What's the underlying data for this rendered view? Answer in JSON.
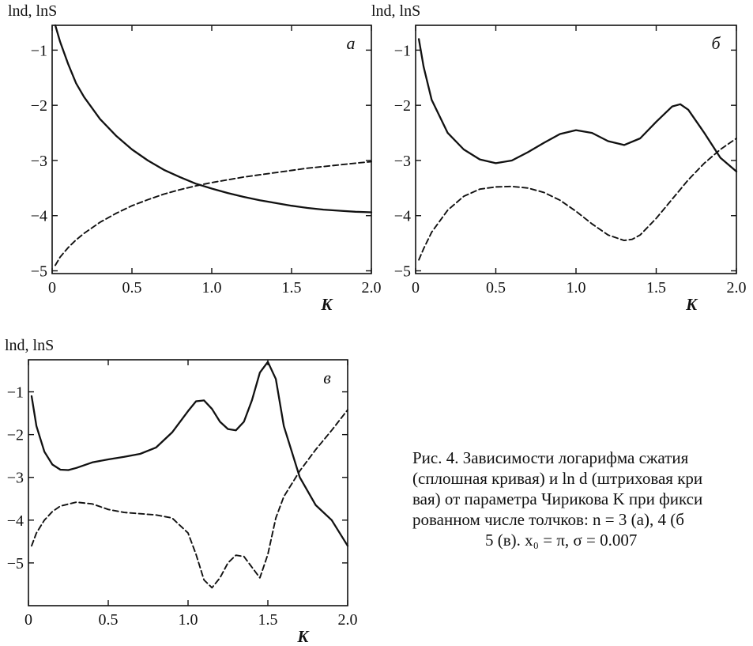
{
  "figure": {
    "caption_lines": [
      "Рис. 4.   Зависимости логарифма сжатия",
      "(сплошная кривая) и ln d (штриховая кри",
      "вая) от параметра Чирикова K при фикси",
      "рованном числе толчков:  n = 3 (а), 4 (б",
      "5 (в).  x₀ = π,  σ = 0.007"
    ]
  },
  "chart_data": [
    {
      "type": "line",
      "panel_label": "а",
      "ylabel": "lnd, lnS",
      "xlabel": "K",
      "xlim": [
        0,
        2.0
      ],
      "ylim": [
        -5.05,
        -0.55
      ],
      "xticks": [
        "0",
        "0.5",
        "1.0",
        "1.5",
        "2.0"
      ],
      "yticks": [
        "−1",
        "−2",
        "−3",
        "−4",
        "−5"
      ],
      "grid": false,
      "series": [
        {
          "style": "solid",
          "x": [
            0.02,
            0.05,
            0.1,
            0.15,
            0.2,
            0.3,
            0.4,
            0.5,
            0.6,
            0.7,
            0.8,
            0.9,
            1.0,
            1.1,
            1.2,
            1.3,
            1.4,
            1.5,
            1.6,
            1.7,
            1.8,
            1.9,
            2.0
          ],
          "y": [
            -0.55,
            -0.85,
            -1.25,
            -1.6,
            -1.85,
            -2.25,
            -2.55,
            -2.8,
            -3.0,
            -3.17,
            -3.3,
            -3.42,
            -3.51,
            -3.59,
            -3.66,
            -3.72,
            -3.77,
            -3.82,
            -3.86,
            -3.89,
            -3.91,
            -3.93,
            -3.94
          ]
        },
        {
          "style": "dashed",
          "x": [
            0.02,
            0.05,
            0.1,
            0.15,
            0.2,
            0.3,
            0.4,
            0.5,
            0.6,
            0.7,
            0.8,
            0.9,
            1.0,
            1.1,
            1.2,
            1.3,
            1.4,
            1.5,
            1.6,
            1.7,
            1.8,
            1.9,
            2.0
          ],
          "y": [
            -4.9,
            -4.75,
            -4.58,
            -4.44,
            -4.32,
            -4.12,
            -3.96,
            -3.82,
            -3.71,
            -3.61,
            -3.53,
            -3.46,
            -3.4,
            -3.35,
            -3.3,
            -3.26,
            -3.22,
            -3.18,
            -3.14,
            -3.11,
            -3.08,
            -3.05,
            -3.02
          ]
        }
      ]
    },
    {
      "type": "line",
      "panel_label": "б",
      "ylabel": "lnd, lnS",
      "xlabel": "K",
      "xlim": [
        0,
        2.0
      ],
      "ylim": [
        -5.05,
        -0.55
      ],
      "xticks": [
        "0",
        "0.5",
        "1.0",
        "1.5",
        "2.0"
      ],
      "yticks": [
        "−1",
        "−2",
        "−3",
        "−4",
        "−5"
      ],
      "grid": false,
      "series": [
        {
          "style": "solid",
          "x": [
            0.02,
            0.05,
            0.1,
            0.2,
            0.3,
            0.4,
            0.5,
            0.6,
            0.7,
            0.8,
            0.9,
            1.0,
            1.1,
            1.2,
            1.3,
            1.4,
            1.5,
            1.6,
            1.65,
            1.7,
            1.8,
            1.9,
            2.0
          ],
          "y": [
            -0.8,
            -1.3,
            -1.9,
            -2.5,
            -2.8,
            -2.98,
            -3.05,
            -3.0,
            -2.85,
            -2.68,
            -2.52,
            -2.45,
            -2.5,
            -2.65,
            -2.72,
            -2.6,
            -2.3,
            -2.02,
            -1.98,
            -2.08,
            -2.5,
            -2.95,
            -3.2
          ]
        },
        {
          "style": "dashed",
          "x": [
            0.02,
            0.05,
            0.1,
            0.2,
            0.3,
            0.4,
            0.5,
            0.6,
            0.7,
            0.8,
            0.9,
            1.0,
            1.1,
            1.2,
            1.3,
            1.35,
            1.4,
            1.5,
            1.6,
            1.7,
            1.8,
            1.9,
            2.0
          ],
          "y": [
            -4.8,
            -4.6,
            -4.3,
            -3.9,
            -3.65,
            -3.52,
            -3.48,
            -3.47,
            -3.5,
            -3.58,
            -3.72,
            -3.92,
            -4.15,
            -4.35,
            -4.45,
            -4.43,
            -4.35,
            -4.05,
            -3.7,
            -3.35,
            -3.05,
            -2.8,
            -2.6
          ]
        }
      ]
    },
    {
      "type": "line",
      "panel_label": "в",
      "ylabel": "lnd, lnS",
      "xlabel": "K",
      "xlim": [
        0,
        2.0
      ],
      "ylim": [
        -6.0,
        -0.25
      ],
      "xticks": [
        "0",
        "0.5",
        "1.0",
        "1.5",
        "2.0"
      ],
      "yticks": [
        "−1",
        "−2",
        "−3",
        "−4",
        "−5"
      ],
      "grid": false,
      "series": [
        {
          "style": "solid",
          "x": [
            0.02,
            0.05,
            0.1,
            0.15,
            0.2,
            0.25,
            0.3,
            0.4,
            0.5,
            0.6,
            0.7,
            0.8,
            0.9,
            1.0,
            1.05,
            1.1,
            1.15,
            1.2,
            1.25,
            1.3,
            1.35,
            1.4,
            1.45,
            1.5,
            1.55,
            1.6,
            1.7,
            1.8,
            1.9,
            2.0
          ],
          "y": [
            -1.1,
            -1.8,
            -2.4,
            -2.7,
            -2.82,
            -2.83,
            -2.78,
            -2.65,
            -2.58,
            -2.52,
            -2.45,
            -2.3,
            -1.95,
            -1.45,
            -1.22,
            -1.2,
            -1.4,
            -1.7,
            -1.87,
            -1.9,
            -1.7,
            -1.2,
            -0.55,
            -0.3,
            -0.7,
            -1.8,
            -3.0,
            -3.65,
            -4.0,
            -4.6
          ]
        },
        {
          "style": "dashed",
          "x": [
            0.02,
            0.05,
            0.1,
            0.15,
            0.2,
            0.3,
            0.4,
            0.5,
            0.6,
            0.7,
            0.8,
            0.9,
            1.0,
            1.05,
            1.1,
            1.15,
            1.2,
            1.25,
            1.3,
            1.35,
            1.4,
            1.45,
            1.5,
            1.55,
            1.6,
            1.7,
            1.8,
            1.9,
            2.0
          ],
          "y": [
            -4.6,
            -4.3,
            -4.0,
            -3.8,
            -3.67,
            -3.58,
            -3.62,
            -3.75,
            -3.82,
            -3.85,
            -3.88,
            -3.95,
            -4.3,
            -4.8,
            -5.4,
            -5.58,
            -5.35,
            -5.0,
            -4.82,
            -4.85,
            -5.1,
            -5.35,
            -4.8,
            -3.95,
            -3.45,
            -2.85,
            -2.35,
            -1.9,
            -1.42
          ]
        }
      ]
    }
  ]
}
